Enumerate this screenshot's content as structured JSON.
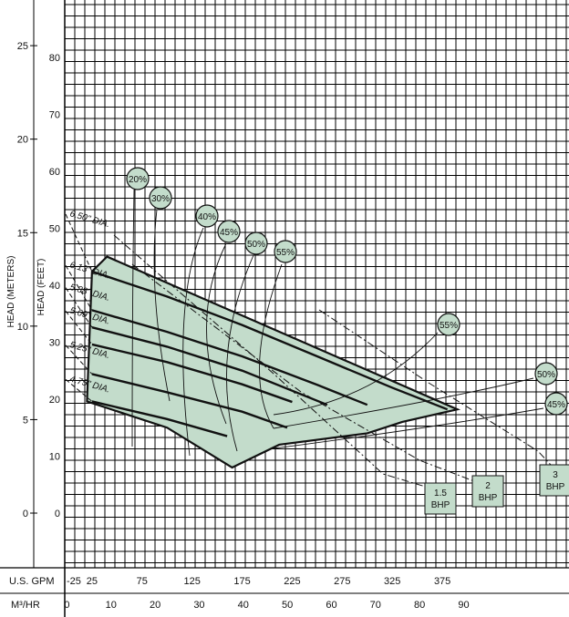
{
  "chart_data": {
    "type": "line",
    "title": "",
    "ylabel_left_outer": "HEAD (METERS)",
    "ylabel_left_inner": "HEAD (FEET)",
    "meters_ticks": [
      "0",
      "5",
      "10",
      "15",
      "20",
      "25"
    ],
    "feet_ticks": [
      "0",
      "10",
      "20",
      "30",
      "40",
      "50",
      "60",
      "70",
      "80"
    ],
    "bottom_axes": {
      "gpm": {
        "label": "U.S. GPM",
        "ticks": [
          "-25",
          "25",
          "75",
          "125",
          "175",
          "225",
          "275",
          "325",
          "375"
        ]
      },
      "m3hr": {
        "label": "M³/HR",
        "ticks": [
          "0",
          "10",
          "20",
          "30",
          "40",
          "50",
          "60",
          "70",
          "80",
          "90"
        ]
      }
    },
    "xlim_gpm": [
      -25,
      425
    ],
    "ylim_feet": [
      -10,
      90
    ],
    "grid": true,
    "region_color": "#c3dccb",
    "dia_curves": [
      {
        "name": "6.50\" DIA.",
        "points": [
          [
            25,
            42.4
          ],
          [
            100,
            38
          ],
          [
            175,
            33
          ],
          [
            250,
            27.5
          ],
          [
            325,
            22
          ],
          [
            380,
            18.2
          ]
        ]
      },
      {
        "name": "6.13\" DIA.",
        "points": [
          [
            25,
            35.6
          ],
          [
            100,
            31.8
          ],
          [
            175,
            27.5
          ],
          [
            250,
            22.5
          ],
          [
            300,
            19
          ]
        ]
      },
      {
        "name": "5.88\" DIA.",
        "points": [
          [
            25,
            32.6
          ],
          [
            100,
            29.2
          ],
          [
            175,
            25
          ],
          [
            260,
            19
          ]
        ]
      },
      {
        "name": "5.69\" DIA.",
        "points": [
          [
            25,
            29.6
          ],
          [
            100,
            26.5
          ],
          [
            175,
            22.6
          ],
          [
            225,
            19.5
          ]
        ]
      },
      {
        "name": "5.25\" DIA.",
        "points": [
          [
            25,
            24.4
          ],
          [
            100,
            21.2
          ],
          [
            175,
            17.8
          ],
          [
            220,
            15
          ]
        ]
      },
      {
        "name": "4.75\" DIA.",
        "points": [
          [
            25,
            19.6
          ],
          [
            100,
            16.5
          ],
          [
            160,
            13.5
          ]
        ]
      }
    ],
    "efficiency_labels": [
      "20%",
      "30%",
      "40%",
      "45%",
      "50%",
      "55%",
      "55%",
      "50%",
      "45%"
    ],
    "bhp_labels": [
      {
        "line1": "1.5",
        "line2": "BHP"
      },
      {
        "line1": "2",
        "line2": "BHP"
      },
      {
        "line1": "3",
        "line2": "BHP"
      }
    ]
  }
}
